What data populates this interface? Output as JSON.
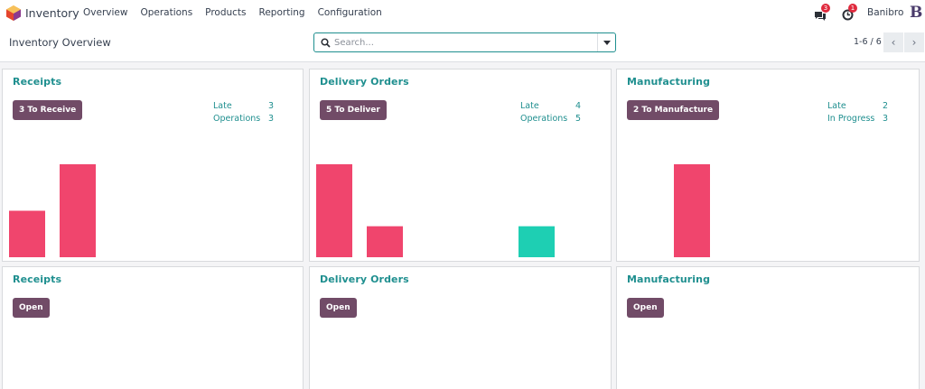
{
  "navbar": {
    "app_name": "Inventory",
    "menu": [
      "Overview",
      "Operations",
      "Products",
      "Reporting",
      "Configuration"
    ],
    "messages_count": "3",
    "activities_count": "1",
    "user_name": "Banibro",
    "avatar_letter": "B"
  },
  "control": {
    "title": "Inventory Overview",
    "search_placeholder": "Search...",
    "pager": "1-6 / 6"
  },
  "colors": {
    "accent": "#1f8f8f",
    "primary_button": "#714b67",
    "bar_late": "#f0456d",
    "bar_future": "#1ecfb3"
  },
  "cards": [
    {
      "title": "Receipts",
      "button": "3 To Receive",
      "stats": [
        {
          "label": "Late",
          "value": "3"
        },
        {
          "label": "Operations",
          "value": "3"
        }
      ],
      "chart_values": [
        1.5,
        3,
        0,
        0,
        0,
        0
      ],
      "chart_colors": [
        "late",
        "late",
        "late",
        "late",
        "future",
        "future"
      ]
    },
    {
      "title": "Delivery Orders",
      "button": "5 To Deliver",
      "stats": [
        {
          "label": "Late",
          "value": "4"
        },
        {
          "label": "Operations",
          "value": "5"
        }
      ],
      "chart_values": [
        3,
        1,
        0,
        0,
        1,
        0
      ],
      "chart_colors": [
        "late",
        "late",
        "late",
        "late",
        "future",
        "future"
      ]
    },
    {
      "title": "Manufacturing",
      "button": "2 To Manufacture",
      "stats": [
        {
          "label": "Late",
          "value": "2"
        },
        {
          "label": "In Progress",
          "value": "3"
        }
      ],
      "chart_values": [
        0,
        3,
        0,
        0,
        0,
        0
      ],
      "chart_colors": [
        "late",
        "late",
        "late",
        "late",
        "future",
        "future"
      ]
    },
    {
      "title": "Receipts",
      "button": "Open",
      "stats": [],
      "chart_values": [],
      "chart_colors": []
    },
    {
      "title": "Delivery Orders",
      "button": "Open",
      "stats": [],
      "chart_values": [],
      "chart_colors": []
    },
    {
      "title": "Manufacturing",
      "button": "Open",
      "stats": [],
      "chart_values": [],
      "chart_colors": []
    }
  ]
}
